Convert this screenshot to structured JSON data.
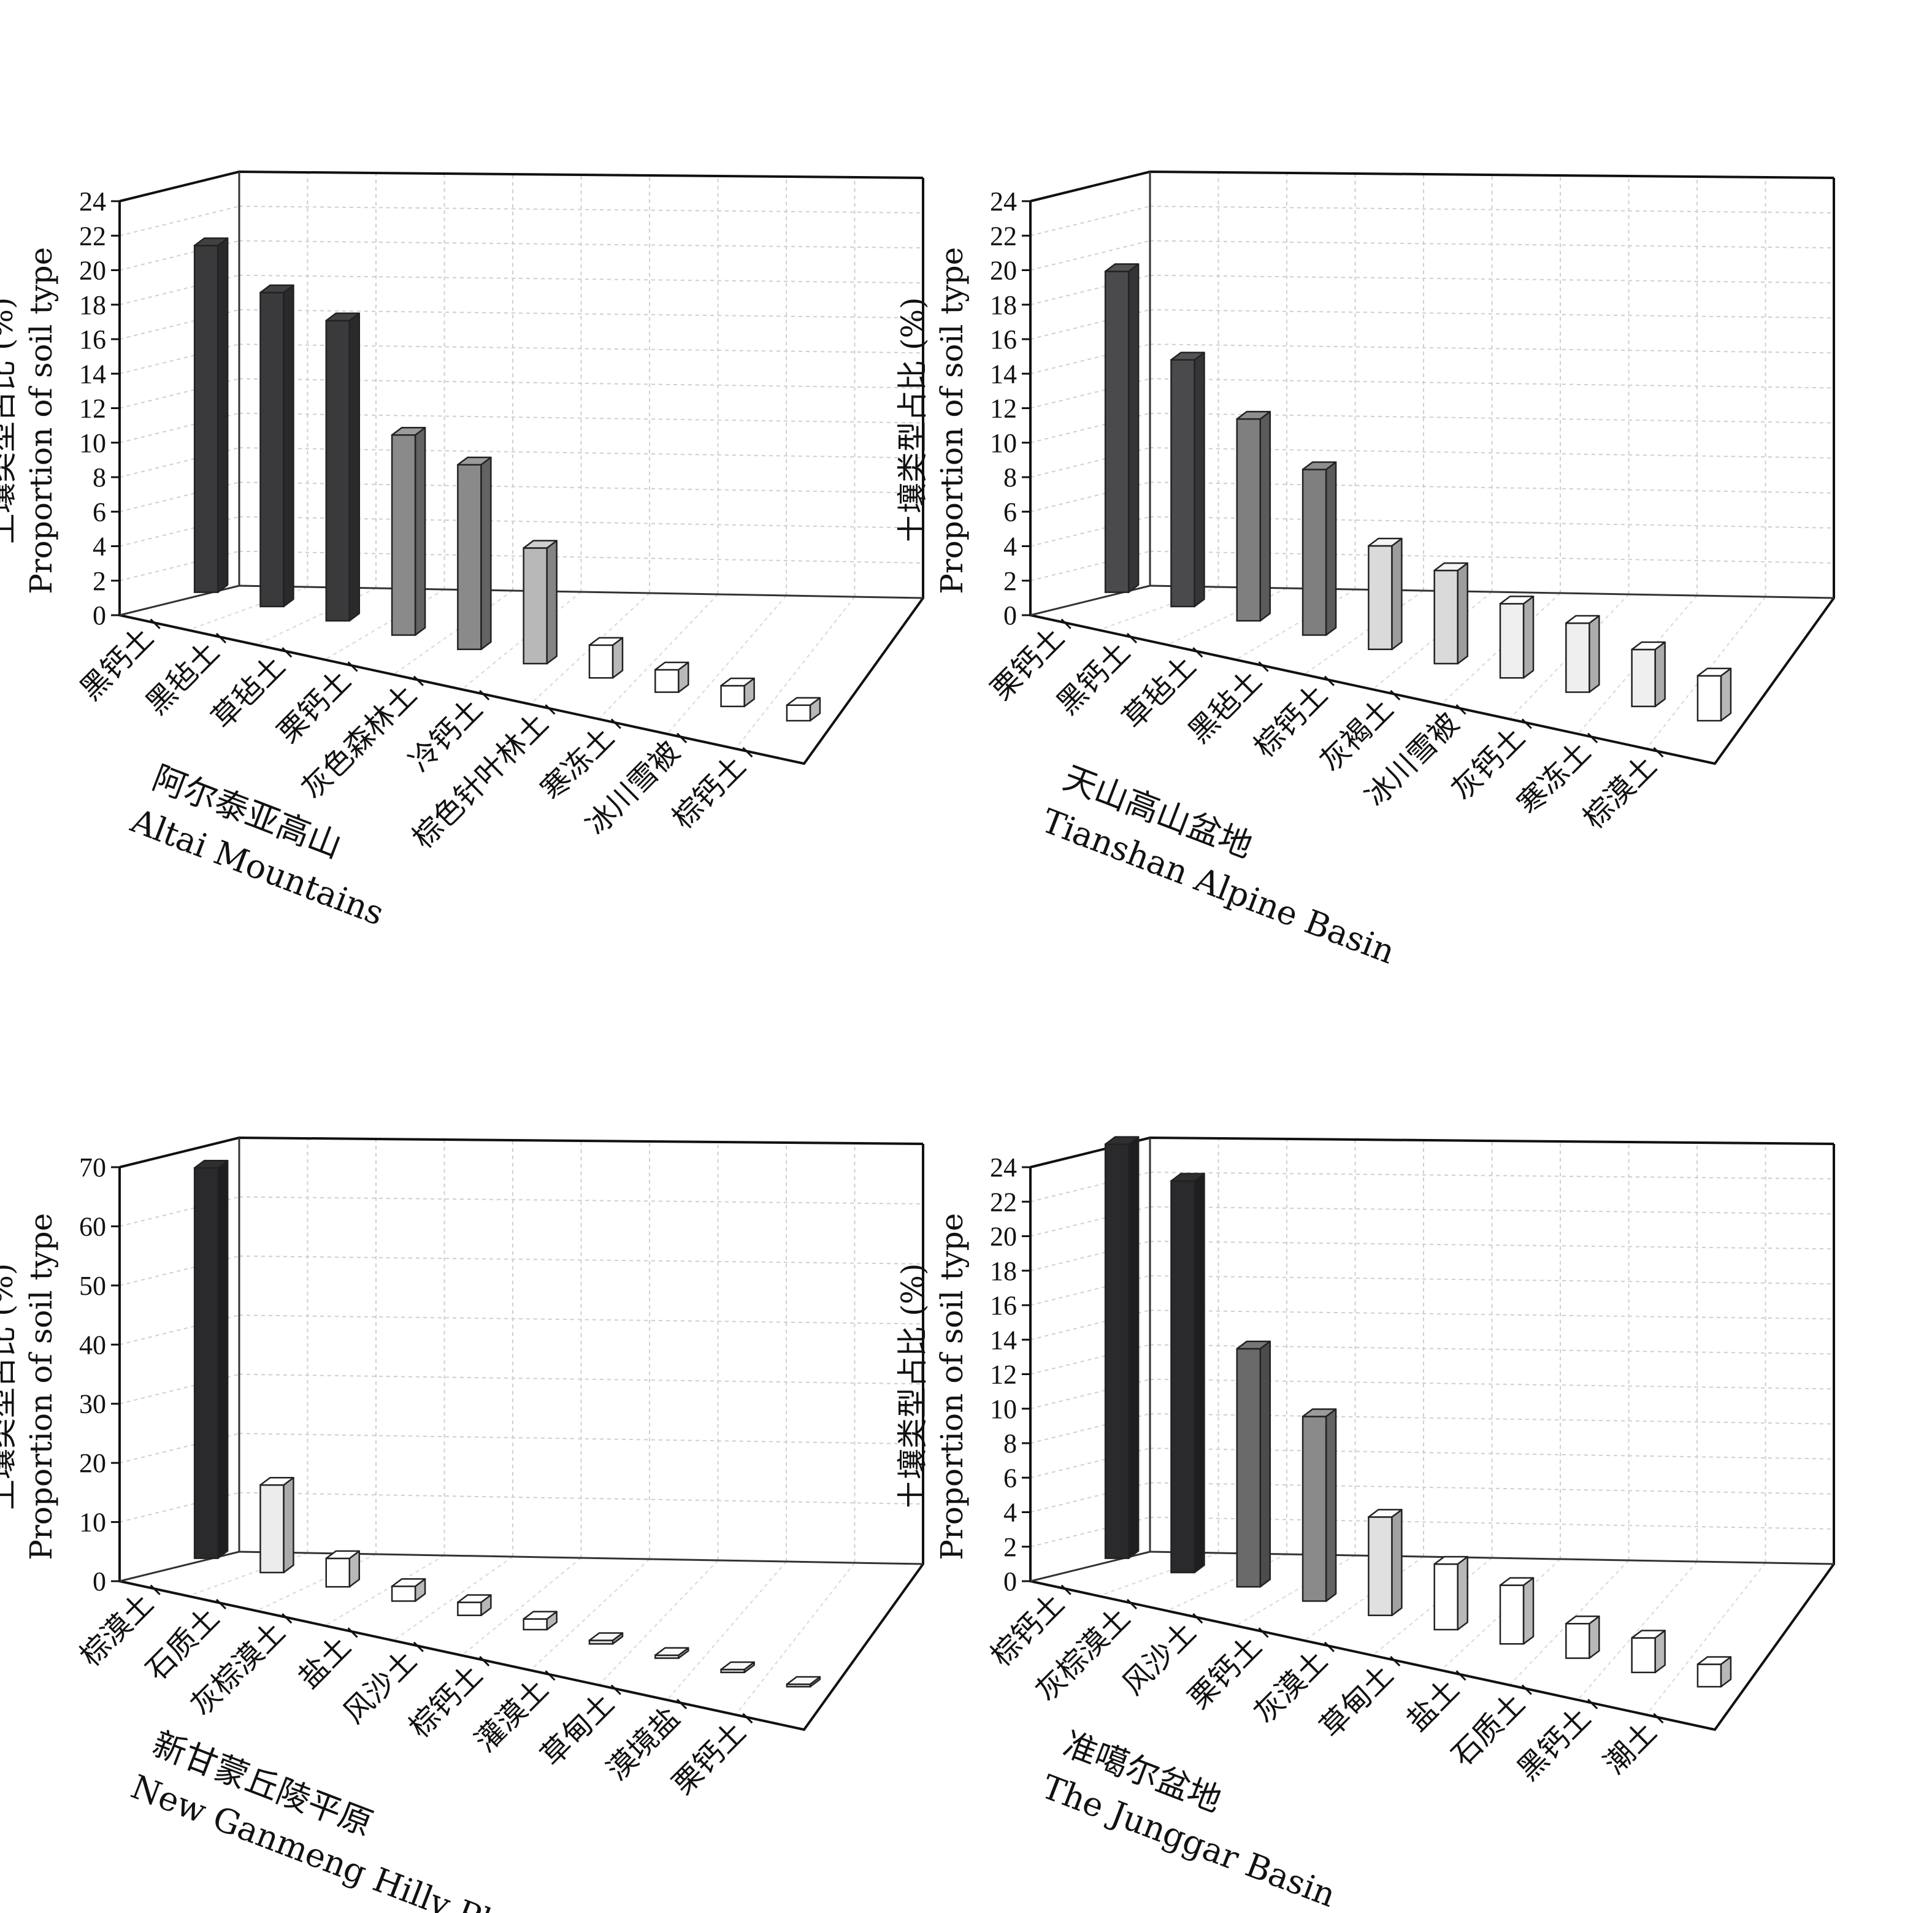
{
  "chart_data": [
    {
      "type": "bar",
      "region_zh": "阿尔泰亚高山",
      "region_en": "Altai Mountains",
      "ylabel_zh": "土壤类型占比 (%)",
      "ylabel_en": "Proportion of soil type",
      "ylim": [
        0,
        24
      ],
      "yticks": [
        0,
        2,
        4,
        6,
        8,
        10,
        12,
        14,
        16,
        18,
        20,
        22,
        24
      ],
      "categories": [
        "黑钙土",
        "黑毡土",
        "草毡土",
        "栗钙土",
        "灰色森林土",
        "冷钙土",
        "棕色针叶林土",
        "寒冻土",
        "冰川雪被",
        "棕钙土"
      ],
      "values": [
        20.1,
        18.2,
        17.4,
        11.6,
        10.7,
        6.7,
        1.9,
        1.3,
        1.2,
        0.9
      ],
      "colors": [
        "#3a3a3c",
        "#3a3a3c",
        "#3a3a3c",
        "#8a8a8a",
        "#8a8a8a",
        "#b8b8b8",
        "#ffffff",
        "#ffffff",
        "#ffffff",
        "#ffffff"
      ]
    },
    {
      "type": "bar",
      "region_zh": "天山高山盆地",
      "region_en": "Tianshan Alpine Basin",
      "ylabel_zh": "土壤类型占比 (%)",
      "ylabel_en": "Proportion of soil type",
      "ylim": [
        0,
        24
      ],
      "yticks": [
        0,
        2,
        4,
        6,
        8,
        10,
        12,
        14,
        16,
        18,
        20,
        22,
        24
      ],
      "categories": [
        "栗钙土",
        "黑钙土",
        "草毡土",
        "黑毡土",
        "棕钙土",
        "灰褐土",
        "冰川雪被",
        "灰钙土",
        "寒冻土",
        "棕漠土"
      ],
      "values": [
        18.6,
        14.3,
        11.7,
        9.6,
        6.0,
        5.4,
        4.3,
        4.0,
        3.3,
        2.6
      ],
      "colors": [
        "#4a4a4c",
        "#4a4a4c",
        "#7f7f7f",
        "#7f7f7f",
        "#dadada",
        "#dadada",
        "#efefef",
        "#efefef",
        "#efefef",
        "#ffffff"
      ]
    },
    {
      "type": "bar",
      "region_zh": "新甘蒙丘陵平原",
      "region_en": "New Ganmeng Hilly Plain",
      "ylabel_zh": "土壤类型占比 (%)",
      "ylabel_en": "Proportion of soil type",
      "ylim": [
        0,
        70
      ],
      "yticks": [
        0,
        10,
        20,
        30,
        40,
        50,
        60,
        70
      ],
      "categories": [
        "棕漠土",
        "石质土",
        "灰棕漠土",
        "盐土",
        "风沙土",
        "棕钙土",
        "灌漠土",
        "草甸土",
        "漠境盐",
        "栗钙土"
      ],
      "values": [
        66,
        14.8,
        4.8,
        2.5,
        2.2,
        1.8,
        0.6,
        0.5,
        0.5,
        0.4
      ],
      "colors": [
        "#2a2a2c",
        "#ececec",
        "#ffffff",
        "#ffffff",
        "#ffffff",
        "#ffffff",
        "#dedede",
        "#dedede",
        "#dedede",
        "#dedede"
      ]
    },
    {
      "type": "bar",
      "region_zh": "准噶尔盆地",
      "region_en": "The Junggar Basin",
      "ylabel_zh": "土壤类型占比 (%)",
      "ylabel_en": "Proportion of soil type",
      "ylim": [
        0,
        24
      ],
      "yticks": [
        0,
        2,
        4,
        6,
        8,
        10,
        12,
        14,
        16,
        18,
        20,
        22,
        24
      ],
      "categories": [
        "棕钙土",
        "灰棕漠土",
        "风沙土",
        "栗钙土",
        "灰漠土",
        "草甸土",
        "盐土",
        "石质土",
        "黑钙土",
        "潮土"
      ],
      "values": [
        24.0,
        22.7,
        13.8,
        10.7,
        5.7,
        3.8,
        3.4,
        2.0,
        2.0,
        1.3
      ],
      "colors": [
        "#2a2a2c",
        "#2a2a2c",
        "#6a6a6a",
        "#8a8a8a",
        "#e0e0e0",
        "#ffffff",
        "#ffffff",
        "#ffffff",
        "#ffffff",
        "#ffffff"
      ]
    }
  ]
}
